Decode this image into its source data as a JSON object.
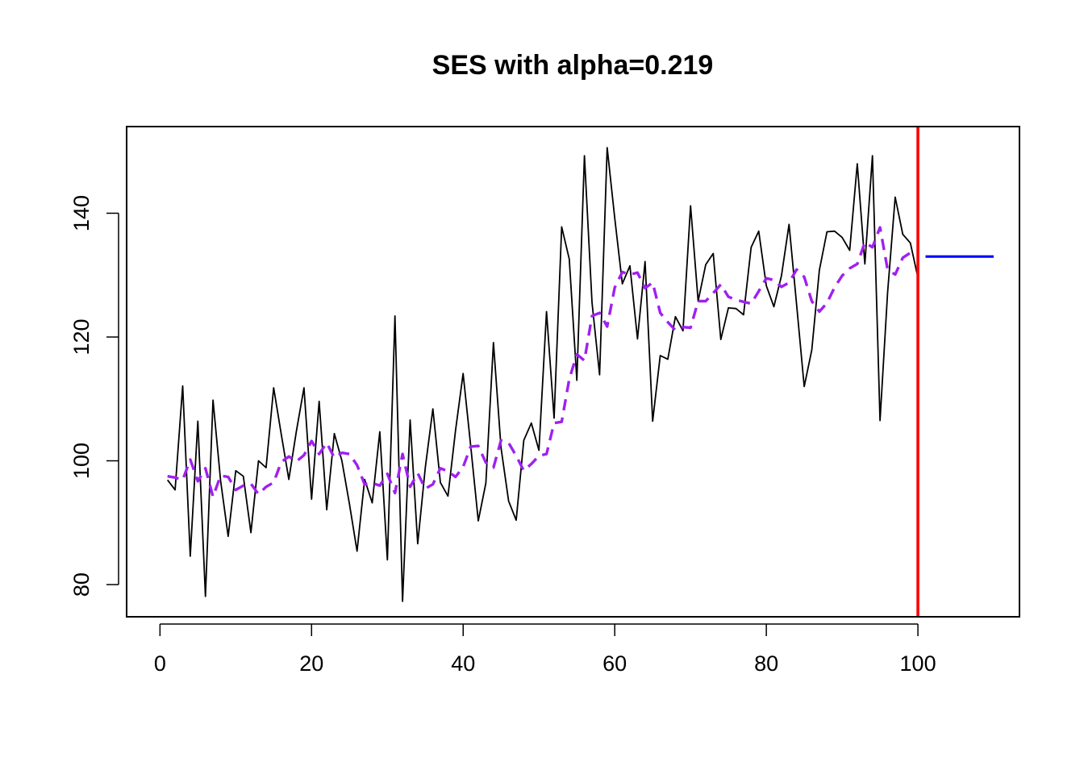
{
  "chart_data": {
    "type": "line",
    "title": "SES with alpha=0.219",
    "xlabel": "",
    "ylabel": "",
    "xlim": [
      -4.4,
      113.4
    ],
    "ylim": [
      74.8,
      154.0
    ],
    "x_ticks": [
      0,
      20,
      40,
      60,
      80,
      100
    ],
    "y_ticks": [
      80,
      100,
      120,
      140
    ],
    "grid": false,
    "legend": "none",
    "series": [
      {
        "role": "observed",
        "color": "#000000",
        "style": "solid",
        "x_start": 1,
        "values": [
          96.9,
          95.3,
          112.1,
          84.6,
          106.4,
          78.1,
          109.8,
          96.8,
          87.8,
          98.4,
          97.5,
          88.4,
          100.0,
          98.9,
          111.8,
          104.3,
          97.0,
          104.8,
          111.8,
          93.8,
          109.6,
          92.1,
          104.4,
          100.0,
          93.0,
          85.4,
          97.0,
          93.2,
          104.7,
          84.0,
          123.4,
          77.3,
          106.6,
          86.6,
          98.9,
          108.4,
          96.5,
          94.3,
          104.9,
          114.1,
          102.4,
          90.3,
          96.4,
          119.1,
          102.1,
          93.5,
          90.4,
          103.3,
          106.1,
          101.7,
          124.1,
          106.9,
          137.8,
          132.6,
          113.0,
          149.3,
          125.6,
          113.9,
          150.6,
          139.2,
          128.6,
          131.5,
          119.7,
          132.2,
          106.4,
          117.0,
          116.4,
          123.3,
          121.0,
          141.2,
          125.8,
          131.7,
          133.5,
          119.6,
          124.7,
          124.6,
          123.6,
          134.5,
          137.1,
          128.3,
          124.9,
          129.9,
          138.2,
          125.2,
          112.0,
          117.9,
          130.8,
          137.0,
          137.1,
          136.1,
          134.0,
          148.0,
          131.8,
          149.3,
          106.5,
          127.2,
          142.6,
          136.6,
          135.2,
          129.6
        ]
      },
      {
        "role": "fitted",
        "color": "#a020f0",
        "style": "dashed",
        "x_start": 1,
        "values": [
          97.5,
          97.3,
          96.9,
          100.2,
          96.7,
          98.8,
          94.2,
          97.6,
          97.4,
          95.3,
          96.0,
          96.3,
          94.6,
          95.8,
          96.5,
          99.8,
          100.7,
          99.9,
          100.9,
          103.2,
          101.1,
          102.9,
          100.5,
          101.3,
          101.1,
          99.3,
          96.2,
          96.4,
          96.0,
          97.9,
          94.8,
          101.1,
          95.8,
          98.0,
          95.5,
          96.2,
          98.8,
          98.3,
          97.4,
          99.0,
          102.3,
          102.4,
          99.7,
          98.9,
          103.3,
          102.9,
          100.8,
          98.4,
          99.5,
          100.8,
          101.1,
          106.1,
          106.3,
          113.2,
          117.2,
          116.2,
          123.4,
          123.9,
          121.7,
          128.0,
          130.5,
          130.1,
          130.4,
          127.9,
          128.8,
          123.9,
          122.4,
          121.1,
          121.6,
          121.5,
          125.8,
          125.8,
          127.1,
          128.5,
          126.5,
          126.0,
          125.7,
          125.4,
          127.4,
          129.5,
          129.2,
          128.1,
          128.8,
          130.9,
          129.7,
          125.8,
          124.1,
          125.5,
          128.0,
          129.9,
          131.1,
          131.8,
          135.3,
          134.5,
          137.7,
          130.9,
          130.1,
          132.8,
          133.6,
          133.9
        ]
      },
      {
        "role": "forecast",
        "color": "#0000ff",
        "style": "solid",
        "x_start": 101,
        "values": [
          133.0,
          133.0,
          133.0,
          133.0,
          133.0,
          133.0,
          133.0,
          133.0,
          133.0,
          133.0
        ]
      }
    ],
    "annotations": [
      {
        "type": "vline",
        "x": 100,
        "color": "#ff0000"
      }
    ]
  }
}
